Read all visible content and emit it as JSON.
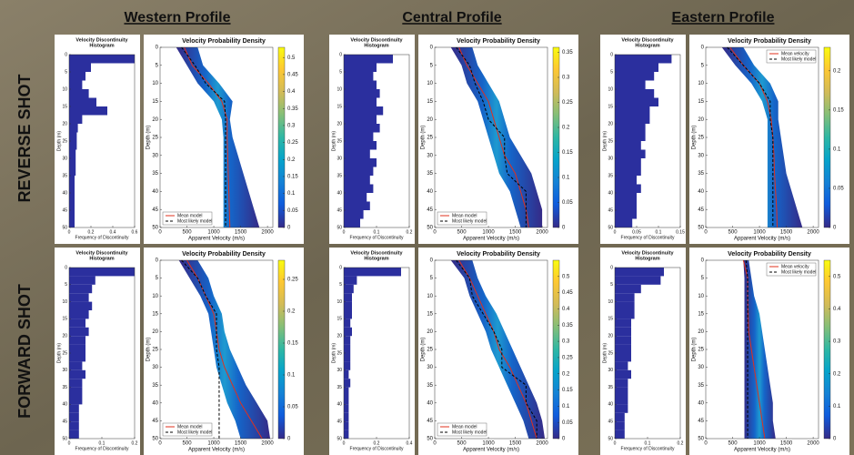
{
  "column_titles": [
    "Western Profile",
    "Central Profile",
    "Eastern Profile"
  ],
  "row_labels": [
    "REVERSE SHOT",
    "FORWARD SHOT"
  ],
  "chart_data": [
    {
      "type": "histogram",
      "title": [
        "Velocity Discontinuity",
        "Histogram"
      ],
      "xlabel": "Frequency of Discontinuity",
      "ylabel": "Depth (m)",
      "bins": [
        0,
        2.5,
        5,
        7.5,
        10,
        12.5,
        15,
        17.5,
        20,
        22.5,
        25,
        27.5,
        30,
        32.5,
        35,
        37.5,
        40,
        42.5,
        45,
        47.5,
        50
      ],
      "values": [
        0.6,
        0.2,
        0.15,
        0.12,
        0.18,
        0.25,
        0.35,
        0.12,
        0.08,
        0.07,
        0.07,
        0.06,
        0.06,
        0.06,
        0.05,
        0.05,
        0.05,
        0.05,
        0.05,
        0.05
      ],
      "color": "#2b2f9e",
      "xlim": [
        0,
        0.6
      ],
      "xticks": [
        0,
        0.2,
        0.4,
        0.6
      ],
      "ylim": [
        0,
        50
      ],
      "yticks": [
        0,
        5,
        10,
        15,
        20,
        25,
        30,
        35,
        40,
        45,
        50
      ]
    },
    {
      "type": "density",
      "title": "Velocity Probability Density",
      "xlabel": "Apparent Velocity (m/s)",
      "ylabel": "Depth (m)",
      "depth": [
        0,
        5,
        10,
        15,
        20,
        25,
        30,
        35,
        40,
        45,
        50
      ],
      "band_low": [
        300,
        500,
        700,
        1000,
        1150,
        1180,
        1180,
        1180,
        1180,
        1180,
        1180
      ],
      "band_high": [
        700,
        800,
        1100,
        1350,
        1300,
        1350,
        1450,
        1550,
        1650,
        1750,
        1850
      ],
      "series": [
        {
          "name": "Mean model",
          "color": "#e0301e",
          "values": [
            450,
            600,
            900,
            1150,
            1250,
            1250,
            1260,
            1270,
            1280,
            1290,
            1300
          ]
        },
        {
          "name": "Most likely model",
          "color": "#000000",
          "dashed": true,
          "values": [
            400,
            650,
            850,
            1200,
            1220,
            1220,
            1220,
            1220,
            1220,
            1220,
            1220
          ]
        }
      ],
      "xlim": [
        0,
        2100
      ],
      "xticks": [
        0,
        500,
        1000,
        1500,
        2000
      ],
      "ylim": [
        0,
        50
      ],
      "yticks": [
        0,
        5,
        10,
        15,
        20,
        25,
        30,
        35,
        40,
        45,
        50
      ],
      "colorbar_lim": [
        0,
        0.53
      ],
      "colorbar_ticks": [
        0,
        0.05,
        0.1,
        0.15,
        0.2,
        0.25,
        0.3,
        0.35,
        0.4,
        0.45,
        0.5
      ],
      "legend": "lower left"
    },
    {
      "type": "histogram",
      "title": [
        "Velocity Discontinuity",
        "Histogram"
      ],
      "xlabel": "Frequency of Discontinuity",
      "ylabel": "Depth (m)",
      "bins": [
        0,
        2.5,
        5,
        7.5,
        10,
        12.5,
        15,
        17.5,
        20,
        22.5,
        25,
        27.5,
        30,
        32.5,
        35,
        37.5,
        40,
        42.5,
        45,
        47.5,
        50
      ],
      "values": [
        0.15,
        0.1,
        0.09,
        0.1,
        0.11,
        0.1,
        0.12,
        0.1,
        0.11,
        0.09,
        0.1,
        0.08,
        0.1,
        0.09,
        0.08,
        0.09,
        0.07,
        0.08,
        0.06,
        0.05
      ],
      "color": "#2b2f9e",
      "xlim": [
        0,
        0.2
      ],
      "xticks": [
        0,
        0.1,
        0.2
      ],
      "ylim": [
        0,
        50
      ],
      "yticks": [
        0,
        5,
        10,
        15,
        20,
        25,
        30,
        35,
        40,
        45,
        50
      ]
    },
    {
      "type": "density",
      "title": "Velocity Probability Density",
      "xlabel": "Apparent Velocity (m/s)",
      "ylabel": "Depth (m)",
      "depth": [
        0,
        5,
        10,
        15,
        20,
        25,
        30,
        35,
        40,
        45,
        50
      ],
      "band_low": [
        300,
        500,
        600,
        800,
        900,
        1000,
        1100,
        1200,
        1400,
        1500,
        1600
      ],
      "band_high": [
        700,
        800,
        1000,
        1200,
        1300,
        1400,
        1600,
        1800,
        1900,
        2000,
        2000
      ],
      "series": [
        {
          "name": "Mean model",
          "color": "#e0301e",
          "values": [
            450,
            600,
            800,
            1000,
            1100,
            1200,
            1300,
            1500,
            1600,
            1700,
            1750
          ]
        },
        {
          "name": "Most likely model",
          "color": "#000000",
          "dashed": true,
          "values": [
            400,
            650,
            750,
            900,
            1000,
            1300,
            1300,
            1350,
            1700,
            1700,
            1700
          ]
        }
      ],
      "xlim": [
        0,
        2100
      ],
      "xticks": [
        0,
        500,
        1000,
        1500,
        2000
      ],
      "ylim": [
        0,
        50
      ],
      "yticks": [
        0,
        5,
        10,
        15,
        20,
        25,
        30,
        35,
        40,
        45,
        50
      ],
      "colorbar_lim": [
        0,
        0.36
      ],
      "colorbar_ticks": [
        0,
        0.05,
        0.1,
        0.15,
        0.2,
        0.25,
        0.3,
        0.35
      ],
      "legend": "lower left"
    },
    {
      "type": "histogram",
      "title": [
        "Velocity Discontinuity",
        "Histogram"
      ],
      "xlabel": "Frequency of Discontinuity",
      "ylabel": "Depth (m)",
      "bins": [
        0,
        2.5,
        5,
        7.5,
        10,
        12.5,
        15,
        17.5,
        20,
        22.5,
        25,
        27.5,
        30,
        32.5,
        35,
        37.5,
        40,
        42.5,
        45,
        47.5,
        50
      ],
      "values": [
        0.13,
        0.1,
        0.09,
        0.07,
        0.09,
        0.1,
        0.08,
        0.08,
        0.07,
        0.07,
        0.06,
        0.07,
        0.06,
        0.06,
        0.05,
        0.06,
        0.05,
        0.05,
        0.05,
        0.04
      ],
      "color": "#2b2f9e",
      "xlim": [
        0,
        0.15
      ],
      "xticks": [
        0,
        0.05,
        0.1,
        0.15
      ],
      "ylim": [
        0,
        50
      ],
      "yticks": [
        0,
        5,
        10,
        15,
        20,
        25,
        30,
        35,
        40,
        45,
        50
      ]
    },
    {
      "type": "density",
      "title": "Velocity Probability Density",
      "xlabel": "Apparent Velocity (m/s)",
      "ylabel": "Depth (m)",
      "depth": [
        0,
        5,
        10,
        15,
        20,
        25,
        30,
        35,
        40,
        45,
        50
      ],
      "band_low": [
        300,
        550,
        850,
        1050,
        1150,
        1150,
        1150,
        1150,
        1150,
        1150,
        1150
      ],
      "band_high": [
        700,
        900,
        1200,
        1350,
        1350,
        1400,
        1450,
        1500,
        1600,
        1700,
        1800
      ],
      "series": [
        {
          "name": "Mean velocity",
          "color": "#e0301e",
          "values": [
            450,
            700,
            1000,
            1150,
            1220,
            1250,
            1270,
            1280,
            1300,
            1320,
            1330
          ]
        },
        {
          "name": "Most likely model",
          "color": "#000000",
          "dashed": true,
          "values": [
            400,
            700,
            1000,
            1200,
            1200,
            1250,
            1250,
            1250,
            1250,
            1250,
            1250
          ]
        }
      ],
      "xlim": [
        0,
        2100
      ],
      "xticks": [
        0,
        500,
        1000,
        1500,
        2000
      ],
      "ylim": [
        0,
        50
      ],
      "yticks": [
        0,
        5,
        10,
        15,
        20,
        25,
        30,
        35,
        40,
        45,
        50
      ],
      "colorbar_lim": [
        0,
        0.23
      ],
      "colorbar_ticks": [
        0,
        0.05,
        0.1,
        0.15,
        0.2
      ],
      "legend": "upper right"
    },
    {
      "type": "histogram",
      "title": [
        "Velocity Discontinuity",
        "Histogram"
      ],
      "xlabel": "Frequency of Discontinuity",
      "ylabel": "Depth (m)",
      "bins": [
        0,
        2.5,
        5,
        7.5,
        10,
        12.5,
        15,
        17.5,
        20,
        22.5,
        25,
        27.5,
        30,
        32.5,
        35,
        37.5,
        40,
        42.5,
        45,
        47.5,
        50
      ],
      "values": [
        0.2,
        0.08,
        0.07,
        0.06,
        0.07,
        0.06,
        0.05,
        0.06,
        0.05,
        0.05,
        0.05,
        0.04,
        0.05,
        0.04,
        0.04,
        0.04,
        0.03,
        0.03,
        0.03,
        0.03
      ],
      "color": "#2b2f9e",
      "xlim": [
        0,
        0.2
      ],
      "xticks": [
        0,
        0.1,
        0.2
      ],
      "ylim": [
        0,
        50
      ],
      "yticks": [
        0,
        5,
        10,
        15,
        20,
        25,
        30,
        35,
        40,
        45,
        50
      ]
    },
    {
      "type": "density",
      "title": "Velocity Probability Density",
      "xlabel": "Apparent Velocity (m/s)",
      "ylabel": "Depth (m)",
      "depth": [
        0,
        5,
        10,
        15,
        20,
        25,
        30,
        35,
        40,
        45,
        50
      ],
      "band_low": [
        350,
        550,
        750,
        900,
        950,
        1000,
        1050,
        1150,
        1250,
        1400,
        1500
      ],
      "band_high": [
        700,
        900,
        1000,
        1150,
        1200,
        1300,
        1450,
        1600,
        1800,
        2000,
        2050
      ],
      "series": [
        {
          "name": "Mean model",
          "color": "#e0301e",
          "values": [
            500,
            700,
            850,
            1000,
            1050,
            1100,
            1200,
            1350,
            1500,
            1700,
            1900
          ]
        },
        {
          "name": "Most likely model",
          "color": "#000000",
          "dashed": true,
          "values": [
            400,
            700,
            850,
            1050,
            1050,
            1050,
            1100,
            1100,
            1100,
            1100,
            1100
          ]
        }
      ],
      "xlim": [
        0,
        2100
      ],
      "xticks": [
        0,
        500,
        1000,
        1500,
        2000
      ],
      "ylim": [
        0,
        50
      ],
      "yticks": [
        0,
        5,
        10,
        15,
        20,
        25,
        30,
        35,
        40,
        45,
        50
      ],
      "colorbar_lim": [
        0,
        0.28
      ],
      "colorbar_ticks": [
        0,
        0.05,
        0.1,
        0.15,
        0.2,
        0.25
      ],
      "legend": "lower left"
    },
    {
      "type": "histogram",
      "title": [
        "Velocity Discontinuity",
        "Histogram"
      ],
      "xlabel": "Frequency of Discontinuity",
      "ylabel": "Depth (m)",
      "bins": [
        0,
        2.5,
        5,
        7.5,
        10,
        12.5,
        15,
        17.5,
        20,
        22.5,
        25,
        27.5,
        30,
        32.5,
        35,
        37.5,
        40,
        42.5,
        45,
        47.5,
        50
      ],
      "values": [
        0.35,
        0.08,
        0.06,
        0.05,
        0.05,
        0.05,
        0.04,
        0.05,
        0.04,
        0.04,
        0.04,
        0.04,
        0.03,
        0.04,
        0.03,
        0.03,
        0.03,
        0.03,
        0.03,
        0.03
      ],
      "color": "#2b2f9e",
      "xlim": [
        0,
        0.4
      ],
      "xticks": [
        0,
        0.2,
        0.4
      ],
      "ylim": [
        0,
        50
      ],
      "yticks": [
        0,
        5,
        10,
        15,
        20,
        25,
        30,
        35,
        40,
        45,
        50
      ]
    },
    {
      "type": "density",
      "title": "Velocity Probability Density",
      "xlabel": "Apparent Velocity (m/s)",
      "ylabel": "Depth (m)",
      "depth": [
        0,
        5,
        10,
        15,
        20,
        25,
        30,
        35,
        40,
        45,
        50
      ],
      "band_low": [
        300,
        550,
        650,
        800,
        950,
        1050,
        1200,
        1350,
        1500,
        1650,
        1750
      ],
      "band_high": [
        700,
        800,
        950,
        1150,
        1300,
        1450,
        1600,
        1750,
        1900,
        2000,
        2050
      ],
      "series": [
        {
          "name": "Mean model",
          "color": "#e0301e",
          "values": [
            450,
            650,
            800,
            950,
            1100,
            1200,
            1400,
            1550,
            1700,
            1800,
            1900
          ]
        },
        {
          "name": "Most likely model",
          "color": "#000000",
          "dashed": true,
          "values": [
            400,
            650,
            700,
            900,
            1100,
            1250,
            1250,
            1700,
            1700,
            1900,
            1900
          ]
        }
      ],
      "xlim": [
        0,
        2100
      ],
      "xticks": [
        0,
        500,
        1000,
        1500,
        2000
      ],
      "ylim": [
        0,
        50
      ],
      "yticks": [
        0,
        5,
        10,
        15,
        20,
        25,
        30,
        35,
        40,
        45,
        50
      ],
      "colorbar_lim": [
        0,
        0.55
      ],
      "colorbar_ticks": [
        0,
        0.05,
        0.1,
        0.15,
        0.2,
        0.25,
        0.3,
        0.35,
        0.4,
        0.45,
        0.5
      ],
      "legend": "lower left"
    },
    {
      "type": "histogram",
      "title": [
        "Velocity Discontinuity",
        "Histogram"
      ],
      "xlabel": "Frequency of Discontinuity",
      "ylabel": "Depth (m)",
      "bins": [
        0,
        2.5,
        5,
        7.5,
        10,
        12.5,
        15,
        17.5,
        20,
        22.5,
        25,
        27.5,
        30,
        32.5,
        35,
        37.5,
        40,
        42.5,
        45,
        47.5,
        50
      ],
      "values": [
        0.15,
        0.14,
        0.08,
        0.06,
        0.06,
        0.06,
        0.05,
        0.05,
        0.05,
        0.05,
        0.05,
        0.04,
        0.05,
        0.04,
        0.04,
        0.04,
        0.04,
        0.03,
        0.03,
        0.03
      ],
      "color": "#2b2f9e",
      "xlim": [
        0,
        0.2
      ],
      "xticks": [
        0,
        0.1,
        0.2
      ],
      "ylim": [
        0,
        50
      ],
      "yticks": [
        0,
        5,
        10,
        15,
        20,
        25,
        30,
        35,
        40,
        45,
        50
      ]
    },
    {
      "type": "density",
      "title": "Velocity Probability Density",
      "xlabel": "Apparent Velocity (m/s)",
      "ylabel": "Depth (m)",
      "depth": [
        0,
        5,
        10,
        15,
        20,
        25,
        30,
        35,
        40,
        45,
        50
      ],
      "band_low": [
        700,
        720,
        720,
        720,
        720,
        720,
        720,
        720,
        720,
        720,
        720
      ],
      "band_high": [
        800,
        850,
        900,
        1000,
        1050,
        1100,
        1150,
        1200,
        1250,
        1250,
        1300
      ],
      "series": [
        {
          "name": "Mean velocity",
          "color": "#e0301e",
          "values": [
            700,
            780,
            780,
            790,
            800,
            850,
            900,
            950,
            1000,
            1050,
            1100
          ]
        },
        {
          "name": "Most likely model",
          "color": "#000000",
          "dashed": true,
          "values": [
            750,
            780,
            780,
            780,
            780,
            780,
            780,
            780,
            780,
            780,
            780
          ]
        }
      ],
      "xlim": [
        0,
        2100
      ],
      "xticks": [
        0,
        500,
        1000,
        1500,
        2000
      ],
      "ylim": [
        0,
        50
      ],
      "yticks": [
        0,
        5,
        10,
        15,
        20,
        25,
        30,
        35,
        40,
        45,
        50
      ],
      "colorbar_lim": [
        0,
        0.55
      ],
      "colorbar_ticks": [
        0,
        0.1,
        0.2,
        0.3,
        0.4,
        0.5
      ],
      "legend": "upper right"
    }
  ]
}
